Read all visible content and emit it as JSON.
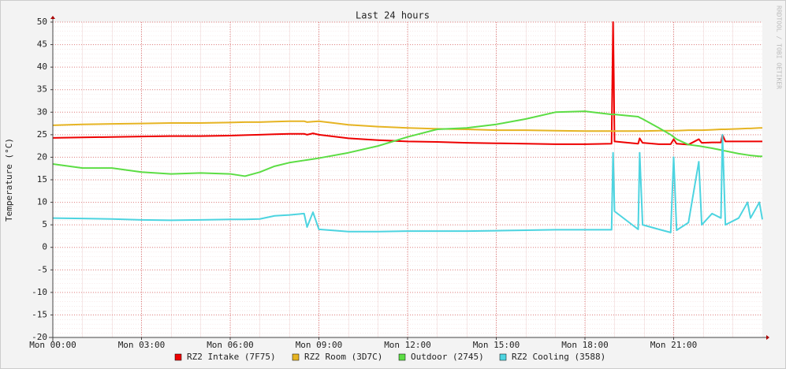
{
  "chart_data": {
    "type": "line",
    "title": "Last 24 hours",
    "y_label": "Temperature (°C)",
    "watermark": "RRDTOOL / TOBI OETIKER",
    "x": [
      0,
      1,
      2,
      3,
      4,
      5,
      6,
      6.5,
      7,
      7.5,
      8,
      8.5,
      8.6,
      8.8,
      9,
      10,
      11,
      12,
      13,
      14,
      15,
      16,
      17,
      18,
      18.9,
      18.95,
      19,
      19.8,
      19.85,
      19.95,
      20.5,
      20.9,
      21,
      21.1,
      21.5,
      21.85,
      21.95,
      22.3,
      22.6,
      22.65,
      22.75,
      23.2,
      23.5,
      23.6,
      23.9,
      24
    ],
    "xlim": [
      0,
      24
    ],
    "xticks": [
      {
        "value": 0,
        "label": "Mon 00:00"
      },
      {
        "value": 3,
        "label": "Mon 03:00"
      },
      {
        "value": 6,
        "label": "Mon 06:00"
      },
      {
        "value": 9,
        "label": "Mon 09:00"
      },
      {
        "value": 12,
        "label": "Mon 12:00"
      },
      {
        "value": 15,
        "label": "Mon 15:00"
      },
      {
        "value": 18,
        "label": "Mon 18:00"
      },
      {
        "value": 21,
        "label": "Mon 21:00"
      }
    ],
    "ylim": [
      -20,
      50
    ],
    "yticks": [
      -20,
      -15,
      -10,
      -5,
      0,
      5,
      10,
      15,
      20,
      25,
      30,
      35,
      40,
      45,
      50
    ],
    "grid": true,
    "series": [
      {
        "name": "RZ2 Intake (7F75)",
        "color": "#ee0000",
        "values": [
          24.3,
          24.4,
          24.5,
          24.6,
          24.7,
          24.7,
          24.8,
          24.9,
          25.0,
          25.1,
          25.2,
          25.2,
          25.0,
          25.3,
          25.0,
          24.2,
          23.8,
          23.5,
          23.4,
          23.2,
          23.1,
          23.0,
          22.9,
          22.9,
          23.0,
          50,
          23.5,
          23.0,
          24.2,
          23.2,
          22.9,
          22.9,
          24.0,
          23.0,
          22.8,
          24.0,
          23.2,
          23.3,
          23.3,
          25.0,
          23.5,
          23.5,
          23.5,
          23.5,
          23.5,
          23.5
        ]
      },
      {
        "name": "RZ2 Room (3D7C)",
        "color": "#e6b423",
        "values": [
          27.1,
          27.3,
          27.4,
          27.5,
          27.6,
          27.6,
          27.7,
          27.8,
          27.8,
          27.9,
          28.0,
          28.0,
          27.8,
          27.9,
          28.0,
          27.2,
          26.8,
          26.5,
          26.3,
          26.2,
          26.0,
          26.0,
          25.9,
          25.8,
          25.8,
          25.8,
          25.8,
          25.8,
          25.8,
          25.8,
          25.9,
          25.9,
          25.9,
          25.9,
          26.0,
          26.0,
          26.0,
          26.1,
          26.2,
          26.2,
          26.2,
          26.3,
          26.4,
          26.4,
          26.5,
          26.5
        ]
      },
      {
        "name": "Outdoor (2745)",
        "color": "#5cdd44",
        "values": [
          18.5,
          17.6,
          17.6,
          16.7,
          16.3,
          16.5,
          16.3,
          15.8,
          16.7,
          18.0,
          18.8,
          19.3,
          19.4,
          19.6,
          19.8,
          21.0,
          22.5,
          24.5,
          26.2,
          26.5,
          27.3,
          28.5,
          30.0,
          30.2,
          29.5,
          29.5,
          29.5,
          29.0,
          28.8,
          28.5,
          26.5,
          25.0,
          24.5,
          24.0,
          22.8,
          22.5,
          22.4,
          22.0,
          21.6,
          21.5,
          21.4,
          20.8,
          20.5,
          20.4,
          20.2,
          20.2
        ]
      },
      {
        "name": "RZ2 Cooling (3588)",
        "color": "#4dd4e0",
        "values": [
          6.5,
          6.4,
          6.3,
          6.1,
          6.0,
          6.1,
          6.2,
          6.2,
          6.3,
          7.0,
          7.2,
          7.5,
          4.5,
          7.8,
          4.0,
          3.5,
          3.5,
          3.6,
          3.6,
          3.6,
          3.7,
          3.8,
          3.9,
          3.9,
          3.9,
          21,
          8,
          4.0,
          21,
          5,
          4.0,
          3.3,
          20,
          3.8,
          5.5,
          19,
          5,
          7.5,
          6.5,
          25,
          5,
          6.5,
          10,
          6.5,
          10,
          6.2
        ]
      }
    ]
  }
}
